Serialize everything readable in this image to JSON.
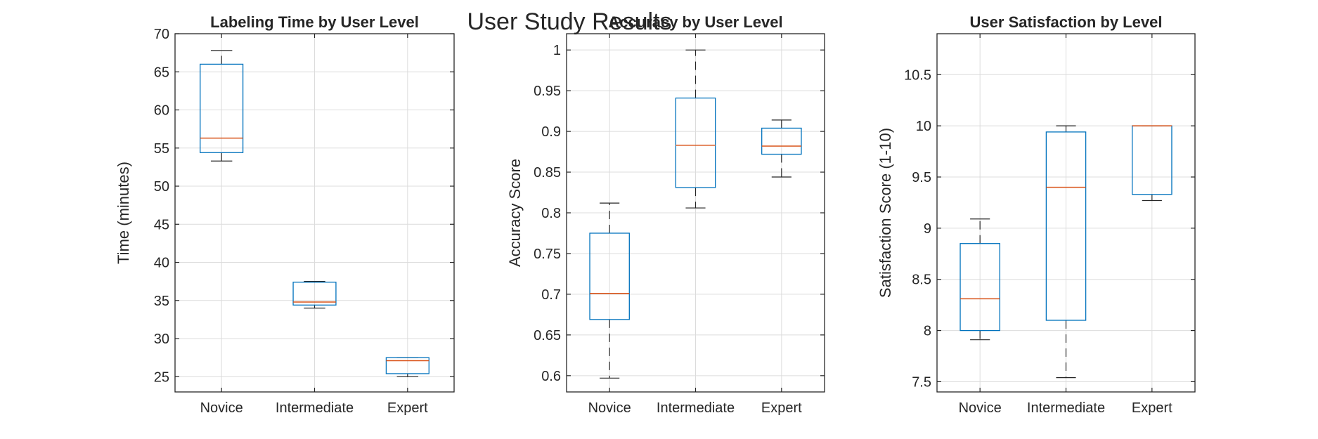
{
  "figure": {
    "title": "User Study Results"
  },
  "colors": {
    "box": "#0072bd",
    "median": "#d95319",
    "whisker": "#262626",
    "grid": "#dcdcdc"
  },
  "chart_data": [
    {
      "type": "box",
      "title": "Labeling Time by User Level",
      "ylabel": "Time (minutes)",
      "xlabel": "",
      "categories": [
        "Novice",
        "Intermediate",
        "Expert"
      ],
      "ylim": [
        23,
        70
      ],
      "yticks": [
        25,
        30,
        35,
        40,
        45,
        50,
        55,
        60,
        65,
        70
      ],
      "ytick_labels": [
        "25",
        "30",
        "35",
        "40",
        "45",
        "50",
        "55",
        "60",
        "65",
        "70"
      ],
      "grid": true,
      "boxes": [
        {
          "min": 53.3,
          "q1": 54.4,
          "median": 56.3,
          "q3": 66.0,
          "max": 67.8
        },
        {
          "min": 34.0,
          "q1": 34.4,
          "median": 34.8,
          "q3": 37.4,
          "max": 37.5
        },
        {
          "min": 25.0,
          "q1": 25.4,
          "median": 27.1,
          "q3": 27.5,
          "max": 27.5
        }
      ]
    },
    {
      "type": "box",
      "title": "Accuracy by User Level",
      "ylabel": "Accuracy Score",
      "xlabel": "",
      "categories": [
        "Novice",
        "Intermediate",
        "Expert"
      ],
      "ylim": [
        0.58,
        1.02
      ],
      "yticks": [
        0.6,
        0.65,
        0.7,
        0.75,
        0.8,
        0.85,
        0.9,
        0.95,
        1
      ],
      "ytick_labels": [
        "0.6",
        "0.65",
        "0.7",
        "0.75",
        "0.8",
        "0.85",
        "0.9",
        "0.95",
        "1"
      ],
      "grid": true,
      "boxes": [
        {
          "min": 0.597,
          "q1": 0.669,
          "median": 0.701,
          "q3": 0.775,
          "max": 0.812
        },
        {
          "min": 0.806,
          "q1": 0.831,
          "median": 0.883,
          "q3": 0.941,
          "max": 1.0
        },
        {
          "min": 0.844,
          "q1": 0.872,
          "median": 0.882,
          "q3": 0.904,
          "max": 0.914
        }
      ]
    },
    {
      "type": "box",
      "title": "User Satisfaction by Level",
      "ylabel": "Satisfaction Score (1-10)",
      "xlabel": "",
      "categories": [
        "Novice",
        "Intermediate",
        "Expert"
      ],
      "ylim": [
        7.4,
        10.9
      ],
      "yticks": [
        7.5,
        8,
        8.5,
        9,
        9.5,
        10,
        10.5
      ],
      "ytick_labels": [
        "7.5",
        "8",
        "8.5",
        "9",
        "9.5",
        "10",
        "10.5"
      ],
      "grid": true,
      "boxes": [
        {
          "min": 7.91,
          "q1": 8.0,
          "median": 8.31,
          "q3": 8.85,
          "max": 9.09
        },
        {
          "min": 7.54,
          "q1": 8.1,
          "median": 9.4,
          "q3": 9.94,
          "max": 10.0
        },
        {
          "min": 9.27,
          "q1": 9.33,
          "median": 10.0,
          "q3": 10.0,
          "max": 10.0
        }
      ]
    }
  ]
}
